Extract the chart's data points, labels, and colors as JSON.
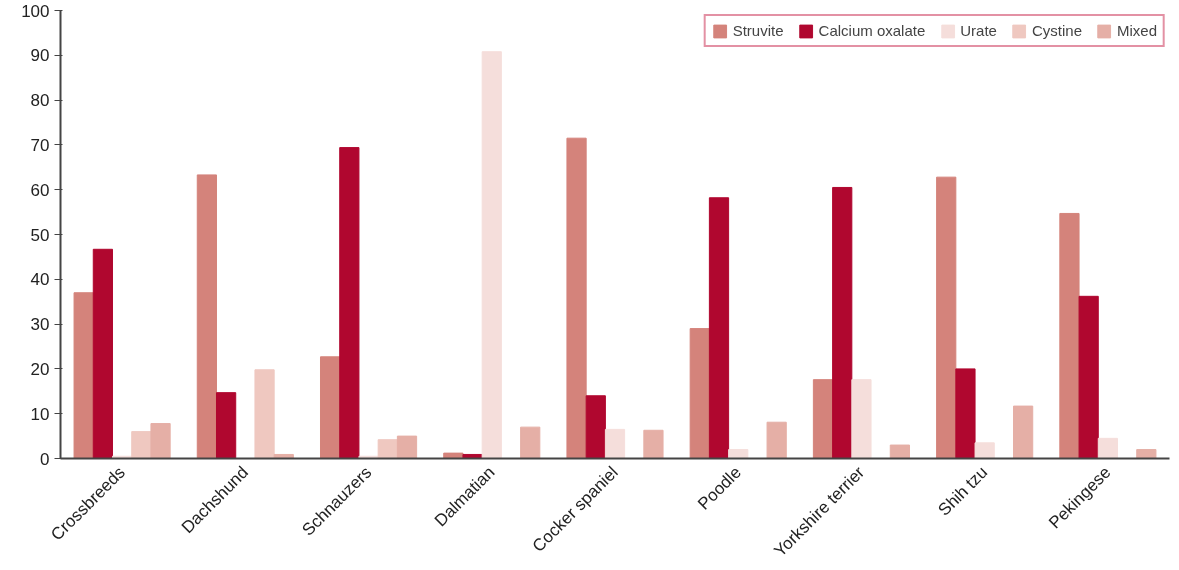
{
  "chart_data": {
    "type": "bar",
    "categories": [
      "Crossbreeds",
      "Dachshund",
      "Schnauzers",
      "Dalmatian",
      "Cocker spaniel",
      "Poodle",
      "Yorkshire terrier",
      "Shih tzu",
      "Pekingese"
    ],
    "series": [
      {
        "name": "Struvite",
        "color": "#d4837b",
        "values": [
          37,
          63.3,
          22.7,
          1.2,
          71.5,
          29,
          17.6,
          62.8,
          54.7
        ]
      },
      {
        "name": "Calcium oxalate",
        "color": "#b0072f",
        "values": [
          46.7,
          14.7,
          69.4,
          0.9,
          14,
          58.2,
          60.5,
          20,
          36.2
        ]
      },
      {
        "name": "Urate",
        "color": "#f5dedb",
        "values": [
          0.5,
          0,
          0.5,
          90.8,
          6.5,
          2,
          17.6,
          3.5,
          4.5
        ]
      },
      {
        "name": "Cystine",
        "color": "#efc8c0",
        "values": [
          6,
          19.8,
          4.2,
          0,
          0,
          0,
          0,
          0,
          0
        ]
      },
      {
        "name": "Mixed",
        "color": "#e5afa6",
        "values": [
          7.8,
          0.9,
          5,
          7,
          6.3,
          8.1,
          3,
          11.7,
          2
        ]
      }
    ],
    "ylim": [
      0,
      100
    ],
    "yticks": [
      0,
      10,
      20,
      30,
      40,
      50,
      60,
      70,
      80,
      90,
      100
    ],
    "grid": false,
    "legend": "top right"
  }
}
